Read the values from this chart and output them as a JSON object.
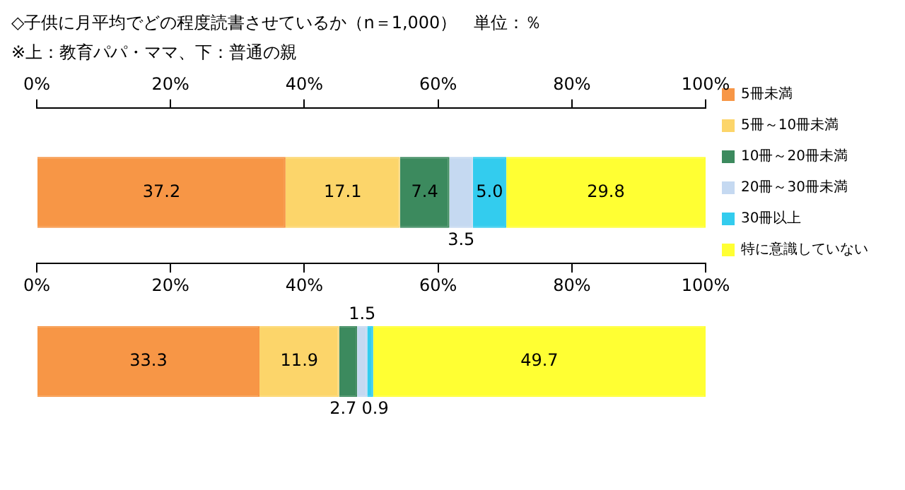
{
  "chart_data": {
    "type": "bar",
    "title": "◇子供に月平均でどの程度読書させているか（n＝1,000）　単位：％",
    "subtitle": "※上：教育パパ・ママ、下：普通の親",
    "orientation": "horizontal",
    "stacked": true,
    "categories": [
      null,
      null
    ],
    "xlim": [
      0,
      100
    ],
    "xticks": [
      {
        "value": 0,
        "label": "0%"
      },
      {
        "value": 20,
        "label": "20%"
      },
      {
        "value": 40,
        "label": "40%"
      },
      {
        "value": 60,
        "label": "60%"
      },
      {
        "value": 80,
        "label": "80%"
      },
      {
        "value": 100,
        "label": "100%"
      }
    ],
    "x2lim": [
      0,
      100
    ],
    "x2ticks": [
      {
        "value": 0,
        "label": "0%"
      },
      {
        "value": 20,
        "label": "20%"
      },
      {
        "value": 40,
        "label": "40%"
      },
      {
        "value": 60,
        "label": "60%"
      },
      {
        "value": 80,
        "label": "80%"
      },
      {
        "value": 100,
        "label": "100%"
      }
    ],
    "legend": "right",
    "series": [
      {
        "name": "5冊未満",
        "color": "#f79646",
        "values": [
          37.2,
          33.3
        ],
        "value_labels": [
          "37.2",
          "33.3"
        ]
      },
      {
        "name": "5冊～10冊未満",
        "color": "#fcd56a",
        "values": [
          17.1,
          11.9
        ],
        "value_labels": [
          "17.1",
          "11.9"
        ]
      },
      {
        "name": "10冊～20冊未満",
        "color": "#3c8a5e",
        "values": [
          7.4,
          2.7
        ],
        "value_labels": [
          "7.4",
          "2.7"
        ]
      },
      {
        "name": "20冊～30冊未満",
        "color": "#c5d9f1",
        "values": [
          3.5,
          1.5
        ],
        "value_labels": [
          "3.5",
          "1.5"
        ]
      },
      {
        "name": "30冊以上",
        "color": "#33ccee",
        "values": [
          5.0,
          0.9
        ],
        "value_labels": [
          "5.0",
          "0.9"
        ]
      },
      {
        "name": "特に意識していない",
        "color": "#ffff33",
        "values": [
          29.8,
          49.7
        ],
        "value_labels": [
          "29.8",
          "49.7"
        ]
      }
    ]
  }
}
